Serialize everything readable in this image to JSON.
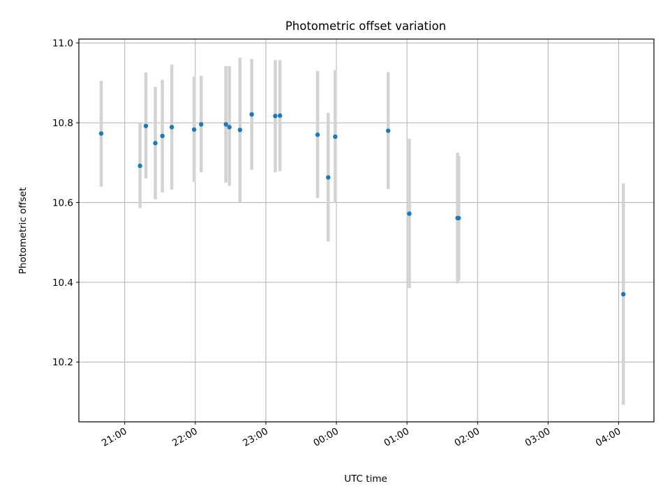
{
  "chart_data": {
    "type": "scatter",
    "title": "Photometric offset variation",
    "xlabel": "UTC time",
    "ylabel": "Photometric offset",
    "x_axis": {
      "kind": "time",
      "unit": "hours since 00:00 UTC",
      "range": [
        -3.65,
        4.5
      ],
      "ticks": [
        {
          "value": -3,
          "label": "21:00"
        },
        {
          "value": -2,
          "label": "22:00"
        },
        {
          "value": -1,
          "label": "23:00"
        },
        {
          "value": 0,
          "label": "00:00"
        },
        {
          "value": 1,
          "label": "01:00"
        },
        {
          "value": 2,
          "label": "02:00"
        },
        {
          "value": 3,
          "label": "03:00"
        },
        {
          "value": 4,
          "label": "04:00"
        }
      ]
    },
    "y_axis": {
      "range": [
        10.05,
        11.01
      ],
      "ticks": [
        {
          "value": 10.2,
          "label": "10.2"
        },
        {
          "value": 10.4,
          "label": "10.4"
        },
        {
          "value": 10.6,
          "label": "10.6"
        },
        {
          "value": 10.8,
          "label": "10.8"
        },
        {
          "value": 11.0,
          "label": "11.0"
        }
      ]
    },
    "grid": true,
    "legend": "none",
    "colors": {
      "point": "#1f77b4",
      "errorbar": "#d3d3d3"
    },
    "points": [
      {
        "x": "20:40",
        "y": 10.773,
        "ylow": 10.64,
        "yhigh": 10.905
      },
      {
        "x": "21:13",
        "y": 10.692,
        "ylow": 10.586,
        "yhigh": 10.8
      },
      {
        "x": "21:18",
        "y": 10.792,
        "ylow": 10.66,
        "yhigh": 10.926
      },
      {
        "x": "21:26",
        "y": 10.749,
        "ylow": 10.608,
        "yhigh": 10.89
      },
      {
        "x": "21:32",
        "y": 10.767,
        "ylow": 10.625,
        "yhigh": 10.908
      },
      {
        "x": "21:40",
        "y": 10.789,
        "ylow": 10.632,
        "yhigh": 10.946
      },
      {
        "x": "21:59",
        "y": 10.783,
        "ylow": 10.652,
        "yhigh": 10.916
      },
      {
        "x": "22:05",
        "y": 10.796,
        "ylow": 10.676,
        "yhigh": 10.918
      },
      {
        "x": "22:26",
        "y": 10.796,
        "ylow": 10.65,
        "yhigh": 10.942
      },
      {
        "x": "22:29",
        "y": 10.789,
        "ylow": 10.642,
        "yhigh": 10.942
      },
      {
        "x": "22:38",
        "y": 10.782,
        "ylow": 10.6,
        "yhigh": 10.963
      },
      {
        "x": "22:48",
        "y": 10.821,
        "ylow": 10.682,
        "yhigh": 10.96
      },
      {
        "x": "23:08",
        "y": 10.817,
        "ylow": 10.676,
        "yhigh": 10.957
      },
      {
        "x": "23:12",
        "y": 10.818,
        "ylow": 10.679,
        "yhigh": 10.957
      },
      {
        "x": "23:44",
        "y": 10.77,
        "ylow": 10.611,
        "yhigh": 10.93
      },
      {
        "x": "23:53",
        "y": 10.663,
        "ylow": 10.502,
        "yhigh": 10.825
      },
      {
        "x": "23:59",
        "y": 10.765,
        "ylow": 10.6,
        "yhigh": 10.932
      },
      {
        "x": "00:44",
        "y": 10.78,
        "ylow": 10.634,
        "yhigh": 10.927
      },
      {
        "x": "01:02",
        "y": 10.572,
        "ylow": 10.385,
        "yhigh": 10.76
      },
      {
        "x": "01:43",
        "y": 10.561,
        "ylow": 10.397,
        "yhigh": 10.725
      },
      {
        "x": "01:44",
        "y": 10.561,
        "ylow": 10.404,
        "yhigh": 10.717
      },
      {
        "x": "04:04",
        "y": 10.37,
        "ylow": 10.093,
        "yhigh": 10.648
      }
    ]
  }
}
